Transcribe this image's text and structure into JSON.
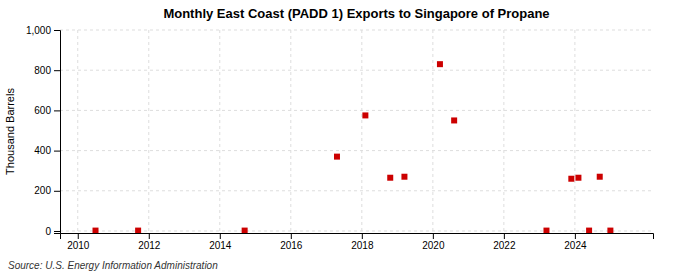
{
  "chart_data": {
    "type": "scatter",
    "title": "Monthly East Coast (PADD 1) Exports to Singapore of Propane",
    "ylabel": "Thousand Barrels",
    "annotations": [
      "Source: U.S. Energy Information Administration"
    ],
    "x": [
      2010.5,
      2011.7,
      2014.7,
      2017.3,
      2018.1,
      2018.8,
      2019.2,
      2020.2,
      2020.6,
      2023.2,
      2023.9,
      2024.1,
      2024.4,
      2024.7,
      2025.0
    ],
    "values": [
      2,
      2,
      2,
      370,
      575,
      265,
      270,
      830,
      550,
      2,
      260,
      265,
      2,
      270,
      2
    ],
    "color": "#cc0000",
    "marker": "square",
    "xlim": [
      2009.5,
      2026.2
    ],
    "xticks": [
      2010,
      2012,
      2014,
      2016,
      2018,
      2020,
      2022,
      2024
    ],
    "ylim": [
      -10,
      1000
    ],
    "yticks": [
      0,
      200,
      400,
      600,
      800,
      {
        "value": 1000,
        "label": "1,000"
      }
    ],
    "grid": true
  }
}
